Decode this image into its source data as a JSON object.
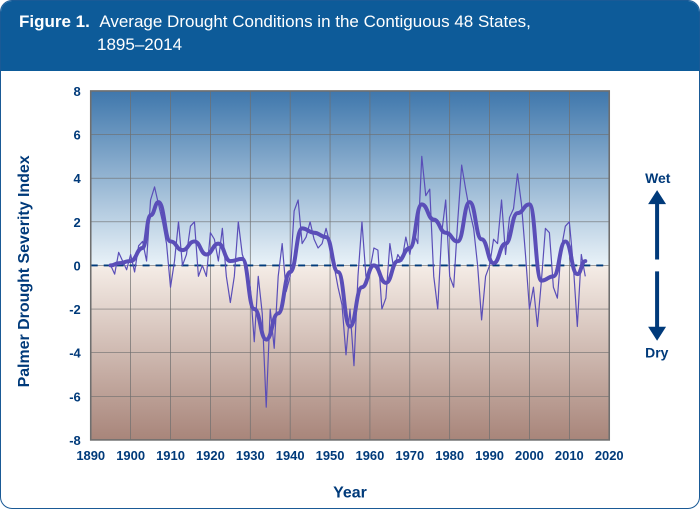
{
  "header": {
    "figure_label": "Figure 1.",
    "title_line1": "Average Drought Conditions in the Contiguous 48 States,",
    "title_line2": "1895–2014",
    "bg_color": "#0d5b99",
    "text_color": "#ffffff"
  },
  "chart": {
    "type": "line",
    "xlabel": "Year",
    "ylabel": "Palmer Drought Severity Index",
    "xlim": [
      1890,
      2020
    ],
    "ylim": [
      -8,
      8
    ],
    "xtick_step": 10,
    "ytick_step": 2,
    "xtick_labels": [
      "1890",
      "1900",
      "1910",
      "1920",
      "1930",
      "1940",
      "1950",
      "1960",
      "1970",
      "1980",
      "1990",
      "2000",
      "2010",
      "2020"
    ],
    "ytick_labels": [
      "-8",
      "-6",
      "-4",
      "-2",
      "0",
      "2",
      "4",
      "6",
      "8"
    ],
    "grid_color": "#6f6f6f",
    "border_color": "#6f6f6f",
    "axis_label_color": "#003a7a",
    "top_gradient": [
      "#3f77ac",
      "#e9f2f8"
    ],
    "bottom_gradient": [
      "#f5ede7",
      "#a8857a"
    ],
    "zero_line_color": "#003a7a",
    "raw_line": {
      "color": "#5a4eb8",
      "width": 1.2,
      "years": [
        1895,
        1896,
        1897,
        1898,
        1899,
        1900,
        1901,
        1902,
        1903,
        1904,
        1905,
        1906,
        1907,
        1908,
        1909,
        1910,
        1911,
        1912,
        1913,
        1914,
        1915,
        1916,
        1917,
        1918,
        1919,
        1920,
        1921,
        1922,
        1923,
        1924,
        1925,
        1926,
        1927,
        1928,
        1929,
        1930,
        1931,
        1932,
        1933,
        1934,
        1935,
        1936,
        1937,
        1938,
        1939,
        1940,
        1941,
        1942,
        1943,
        1944,
        1945,
        1946,
        1947,
        1948,
        1949,
        1950,
        1951,
        1952,
        1953,
        1954,
        1955,
        1956,
        1957,
        1958,
        1959,
        1960,
        1961,
        1962,
        1963,
        1964,
        1965,
        1966,
        1967,
        1968,
        1969,
        1970,
        1971,
        1972,
        1973,
        1974,
        1975,
        1976,
        1977,
        1978,
        1979,
        1980,
        1981,
        1982,
        1983,
        1984,
        1985,
        1986,
        1987,
        1988,
        1989,
        1990,
        1991,
        1992,
        1993,
        1994,
        1995,
        1996,
        1997,
        1998,
        1999,
        2000,
        2001,
        2002,
        2003,
        2004,
        2005,
        2006,
        2007,
        2008,
        2009,
        2010,
        2011,
        2012,
        2013,
        2014
      ],
      "values": [
        0.0,
        -0.4,
        0.6,
        0.2,
        -0.2,
        0.5,
        -0.3,
        0.9,
        1.1,
        0.2,
        3.0,
        3.6,
        2.8,
        2.0,
        1.0,
        -1.0,
        0.2,
        2.0,
        0.0,
        0.5,
        1.8,
        2.0,
        -0.5,
        0.0,
        -0.5,
        1.5,
        1.2,
        0.2,
        1.7,
        -0.5,
        -1.7,
        -0.5,
        2.0,
        0.5,
        0.0,
        -1.0,
        -3.5,
        -0.5,
        -2.2,
        -6.5,
        -2.0,
        -3.8,
        -0.5,
        1.0,
        -1.2,
        -0.5,
        2.5,
        3.0,
        1.0,
        1.3,
        2.0,
        1.2,
        0.8,
        1.0,
        1.7,
        1.0,
        0.0,
        -1.0,
        -1.8,
        -4.1,
        -2.0,
        -4.6,
        -0.5,
        2.0,
        -0.5,
        -0.2,
        0.8,
        0.7,
        -2.0,
        -1.5,
        1.0,
        -0.2,
        0.5,
        0.2,
        1.3,
        0.5,
        1.5,
        1.0,
        5.0,
        3.2,
        3.5,
        -0.5,
        -2.0,
        1.5,
        3.0,
        -0.5,
        -1.0,
        2.0,
        4.6,
        3.5,
        2.5,
        1.7,
        0.0,
        -2.5,
        -0.5,
        0.0,
        1.2,
        1.0,
        3.0,
        0.5,
        2.2,
        2.6,
        4.2,
        2.8,
        0.5,
        -2.0,
        -1.0,
        -2.8,
        -0.7,
        1.7,
        1.5,
        -1.0,
        -1.5,
        0.8,
        1.8,
        2.0,
        0.0,
        -2.8,
        0.5,
        -0.5
      ]
    },
    "smooth_line": {
      "color": "#5a4eb8",
      "width": 4.0,
      "years": [
        1895,
        1897,
        1900,
        1903,
        1905,
        1907,
        1910,
        1913,
        1916,
        1919,
        1922,
        1925,
        1928,
        1931,
        1934,
        1937,
        1940,
        1943,
        1946,
        1949,
        1952,
        1955,
        1958,
        1961,
        1964,
        1967,
        1970,
        1973,
        1976,
        1979,
        1982,
        1985,
        1988,
        1991,
        1994,
        1997,
        2000,
        2003,
        2006,
        2009,
        2012,
        2014
      ],
      "values": [
        0.0,
        0.1,
        0.2,
        0.8,
        2.3,
        2.9,
        1.1,
        0.7,
        1.1,
        0.5,
        1.0,
        0.2,
        0.3,
        -2.0,
        -3.4,
        -2.2,
        -0.3,
        1.7,
        1.5,
        1.3,
        -0.3,
        -2.8,
        -1.0,
        0.0,
        -0.8,
        0.2,
        0.8,
        2.8,
        2.1,
        1.5,
        1.1,
        2.9,
        1.2,
        0.1,
        1.0,
        2.4,
        2.8,
        -0.7,
        -0.5,
        1.1,
        -0.4,
        0.2
      ]
    },
    "annotations": {
      "wet_label": "Wet",
      "dry_label": "Dry",
      "arrow_color": "#003a7a"
    }
  }
}
